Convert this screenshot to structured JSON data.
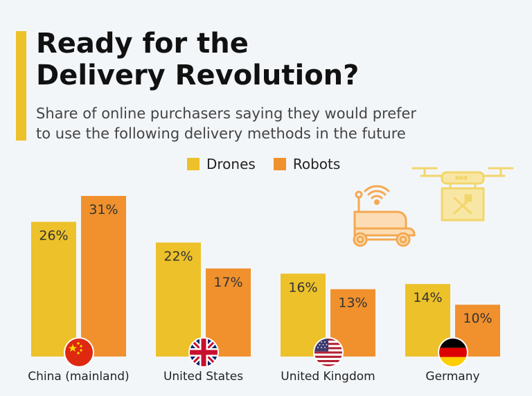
{
  "header": {
    "title_line1": "Ready for the",
    "title_line2": "Delivery Revolution?",
    "subtitle_line1": "Share of online purchasers saying they would prefer",
    "subtitle_line2": "to use the following delivery methods in the future"
  },
  "colors": {
    "drones": "#ecc12a",
    "robots": "#f0912d",
    "accent": "#ecc12a",
    "background": "#f3f6f9"
  },
  "icons": [
    "china-flag-icon",
    "uk-flag-icon",
    "usa-flag-icon",
    "germany-flag-icon",
    "delivery-robot-icon",
    "delivery-drone-icon"
  ],
  "chart_data": {
    "type": "bar",
    "categories": [
      "China (mainland)",
      "United States",
      "United Kingdom",
      "Germany"
    ],
    "series": [
      {
        "name": "Drones",
        "values": [
          26,
          22,
          16,
          14
        ]
      },
      {
        "name": "Robots",
        "values": [
          31,
          17,
          13,
          10
        ]
      }
    ],
    "value_labels": [
      [
        "26%",
        "22%",
        "16%",
        "14%"
      ],
      [
        "31%",
        "17%",
        "13%",
        "10%"
      ]
    ],
    "unit": "%",
    "ylim": [
      0,
      31
    ],
    "legend_position": "top",
    "grid": false
  }
}
